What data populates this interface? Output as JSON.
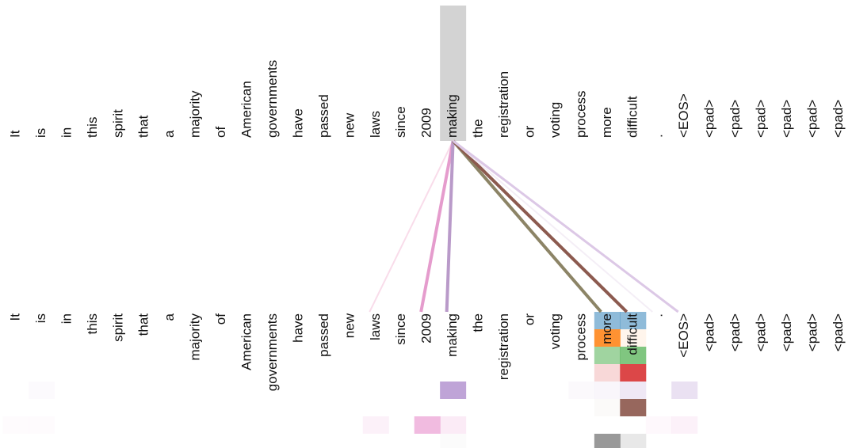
{
  "tokens": [
    "It",
    "is",
    "in",
    "this",
    "spirit",
    "that",
    "a",
    "majority",
    "of",
    "American",
    "governments",
    "have",
    "passed",
    "new",
    "laws",
    "since",
    "2009",
    "making",
    "the",
    "registration",
    "or",
    "voting",
    "process",
    "more",
    "difficult",
    ".",
    "<EOS>",
    "<pad>",
    "<pad>",
    "<pad>",
    "<pad>",
    "<pad>",
    "<pad>"
  ],
  "query": 17,
  "links": [
    {
      "to": 14,
      "color": "#f9dcea",
      "width": 2
    },
    {
      "to": 16,
      "color": "#e59ccd",
      "width": 4
    },
    {
      "to": 17,
      "color": "#b99ac9",
      "width": 4
    },
    {
      "to": 23,
      "color": "#8c8466",
      "width": 4
    },
    {
      "to": 24,
      "color": "#8c5a4f",
      "width": 4
    },
    {
      "to": 25,
      "color": "#f4eef6",
      "width": 2
    },
    {
      "to": 26,
      "color": "#dcc8e6",
      "width": 3
    }
  ],
  "heads": [
    {
      "color": "#1f77b4",
      "cells": [
        [
          23,
          0.5
        ],
        [
          24,
          0.5
        ]
      ]
    },
    {
      "color": "#ff7f0e",
      "cells": [
        [
          23,
          0.85
        ],
        [
          24,
          0.08
        ]
      ]
    },
    {
      "color": "#2ca02c",
      "cells": [
        [
          23,
          0.45
        ],
        [
          24,
          0.6
        ]
      ]
    },
    {
      "color": "#d62728",
      "cells": [
        [
          23,
          0.18
        ],
        [
          24,
          0.85
        ]
      ]
    },
    {
      "color": "#9467bd",
      "cells": [
        [
          1,
          0.03
        ],
        [
          17,
          0.6
        ],
        [
          22,
          0.04
        ],
        [
          23,
          0.06
        ],
        [
          24,
          0.15
        ],
        [
          26,
          0.2
        ]
      ]
    },
    {
      "color": "#8c564b",
      "cells": [
        [
          23,
          0.03
        ],
        [
          24,
          0.9
        ]
      ]
    },
    {
      "color": "#e377c2",
      "cells": [
        [
          0,
          0.03
        ],
        [
          1,
          0.03
        ],
        [
          14,
          0.1
        ],
        [
          16,
          0.5
        ],
        [
          17,
          0.15
        ],
        [
          25,
          0.05
        ],
        [
          26,
          0.1
        ]
      ]
    },
    {
      "color": "#7f7f7f",
      "cells": [
        [
          17,
          0.03
        ],
        [
          23,
          0.8
        ],
        [
          24,
          0.18
        ]
      ]
    }
  ]
}
